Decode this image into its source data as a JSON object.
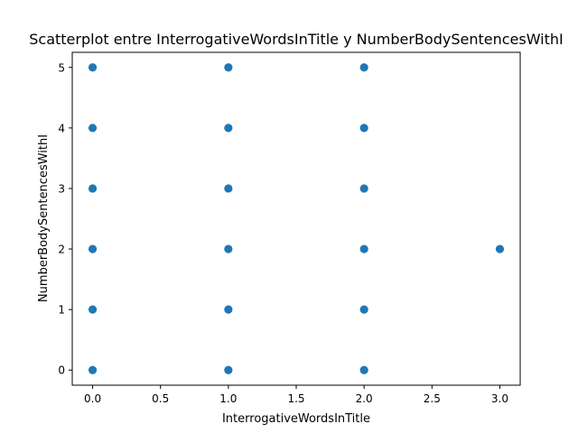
{
  "chart_data": {
    "type": "scatter",
    "title": "Scatterplot entre InterrogativeWordsInTitle y NumberBodySentencesWithI",
    "xlabel": "InterrogativeWordsInTitle",
    "ylabel": "NumberBodySentencesWithI",
    "xlim": [
      -0.15,
      3.15
    ],
    "ylim": [
      -0.25,
      5.25
    ],
    "xticks": [
      0.0,
      0.5,
      1.0,
      1.5,
      2.0,
      2.5,
      3.0
    ],
    "xtick_labels": [
      "0.0",
      "0.5",
      "1.0",
      "1.5",
      "2.0",
      "2.5",
      "3.0"
    ],
    "yticks": [
      0,
      1,
      2,
      3,
      4,
      5
    ],
    "ytick_labels": [
      "0",
      "1",
      "2",
      "3",
      "4",
      "5"
    ],
    "grid": false,
    "marker_color": "#1f77b4",
    "points": [
      {
        "x": 0,
        "y": 0
      },
      {
        "x": 0,
        "y": 1
      },
      {
        "x": 0,
        "y": 2
      },
      {
        "x": 0,
        "y": 3
      },
      {
        "x": 0,
        "y": 4
      },
      {
        "x": 0,
        "y": 5
      },
      {
        "x": 1,
        "y": 0
      },
      {
        "x": 1,
        "y": 1
      },
      {
        "x": 1,
        "y": 2
      },
      {
        "x": 1,
        "y": 3
      },
      {
        "x": 1,
        "y": 4
      },
      {
        "x": 1,
        "y": 5
      },
      {
        "x": 2,
        "y": 0
      },
      {
        "x": 2,
        "y": 1
      },
      {
        "x": 2,
        "y": 2
      },
      {
        "x": 2,
        "y": 3
      },
      {
        "x": 2,
        "y": 4
      },
      {
        "x": 2,
        "y": 5
      },
      {
        "x": 3,
        "y": 2
      }
    ]
  }
}
